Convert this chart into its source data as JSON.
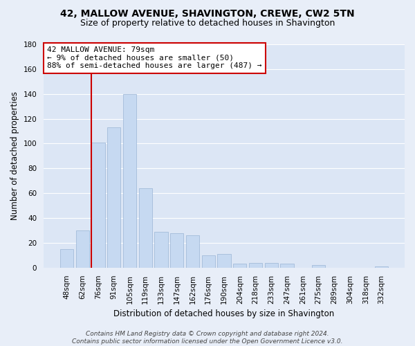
{
  "title": "42, MALLOW AVENUE, SHAVINGTON, CREWE, CW2 5TN",
  "subtitle": "Size of property relative to detached houses in Shavington",
  "xlabel": "Distribution of detached houses by size in Shavington",
  "ylabel": "Number of detached properties",
  "categories": [
    "48sqm",
    "62sqm",
    "76sqm",
    "91sqm",
    "105sqm",
    "119sqm",
    "133sqm",
    "147sqm",
    "162sqm",
    "176sqm",
    "190sqm",
    "204sqm",
    "218sqm",
    "233sqm",
    "247sqm",
    "261sqm",
    "275sqm",
    "289sqm",
    "304sqm",
    "318sqm",
    "332sqm"
  ],
  "values": [
    15,
    30,
    101,
    113,
    140,
    64,
    29,
    28,
    26,
    10,
    11,
    3,
    4,
    4,
    3,
    0,
    2,
    0,
    0,
    0,
    1
  ],
  "bar_color": "#c6d9f1",
  "bar_edge_color": "#9ab4d4",
  "vline_color": "#cc0000",
  "vline_xindex": 2,
  "annotation_text": "42 MALLOW AVENUE: 79sqm\n← 9% of detached houses are smaller (50)\n88% of semi-detached houses are larger (487) →",
  "annotation_box_color": "#ffffff",
  "annotation_box_edge_color": "#cc0000",
  "ylim": [
    0,
    180
  ],
  "yticks": [
    0,
    20,
    40,
    60,
    80,
    100,
    120,
    140,
    160,
    180
  ],
  "bg_color": "#e8eef8",
  "plot_bg_color": "#dce6f5",
  "grid_color": "#ffffff",
  "footer": "Contains HM Land Registry data © Crown copyright and database right 2024.\nContains public sector information licensed under the Open Government Licence v3.0.",
  "title_fontsize": 10,
  "subtitle_fontsize": 9,
  "xlabel_fontsize": 8.5,
  "ylabel_fontsize": 8.5,
  "tick_fontsize": 7.5,
  "annotation_fontsize": 8,
  "footer_fontsize": 6.5
}
